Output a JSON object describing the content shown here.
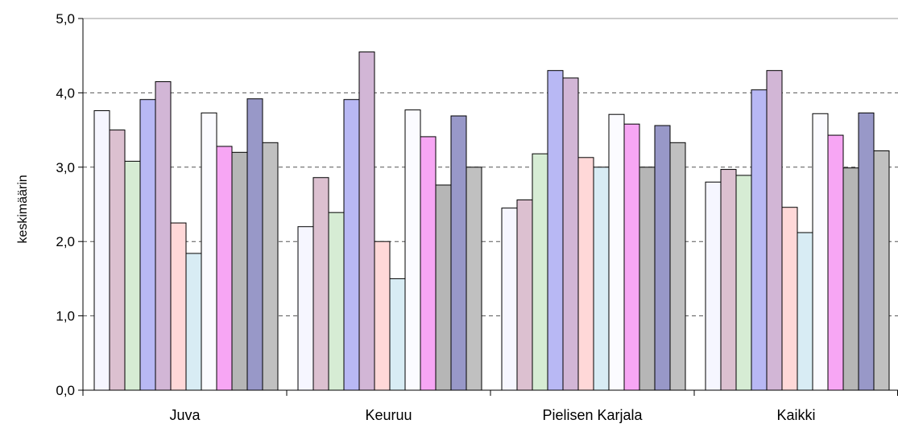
{
  "chart_data": {
    "type": "bar",
    "ylabel": "keskimäärin",
    "ylim": [
      0,
      5
    ],
    "yticks": [
      0,
      1,
      2,
      3,
      4,
      5
    ],
    "ytick_labels": [
      "0,0",
      "1,0",
      "2,0",
      "3,0",
      "4,0",
      "5,0"
    ],
    "grid": "horizontal dashed",
    "categories": [
      "Juva",
      "Keuruu",
      "Pielisen Karjala",
      "Kaikki"
    ],
    "series": [
      {
        "values": [
          3.76,
          2.2,
          2.45,
          2.8
        ],
        "color": "#f6f6ff"
      },
      {
        "values": [
          3.5,
          2.86,
          2.56,
          2.97
        ],
        "color": "#dcc0d0"
      },
      {
        "values": [
          3.08,
          2.39,
          3.18,
          2.89
        ],
        "color": "#d6ecd4"
      },
      {
        "values": [
          3.91,
          3.91,
          4.3,
          4.04
        ],
        "color": "#b8b8f4"
      },
      {
        "values": [
          4.15,
          4.55,
          4.2,
          4.3
        ],
        "color": "#d2b6d6"
      },
      {
        "values": [
          2.25,
          2.0,
          3.13,
          2.46
        ],
        "color": "#ffd8d8"
      },
      {
        "values": [
          1.84,
          1.5,
          3.0,
          2.12
        ],
        "color": "#d8ecf4"
      },
      {
        "values": [
          3.73,
          3.77,
          3.71,
          3.72
        ],
        "color": "#fbfbff"
      },
      {
        "values": [
          3.28,
          3.41,
          3.58,
          3.43
        ],
        "color": "#f7a6f4"
      },
      {
        "values": [
          3.2,
          2.76,
          3.0,
          2.99
        ],
        "color": "#b6b6b6"
      },
      {
        "values": [
          3.92,
          3.69,
          3.56,
          3.73
        ],
        "color": "#9898c8"
      },
      {
        "values": [
          3.33,
          3.0,
          3.33,
          3.22
        ],
        "color": "#c0c0c0"
      }
    ]
  }
}
